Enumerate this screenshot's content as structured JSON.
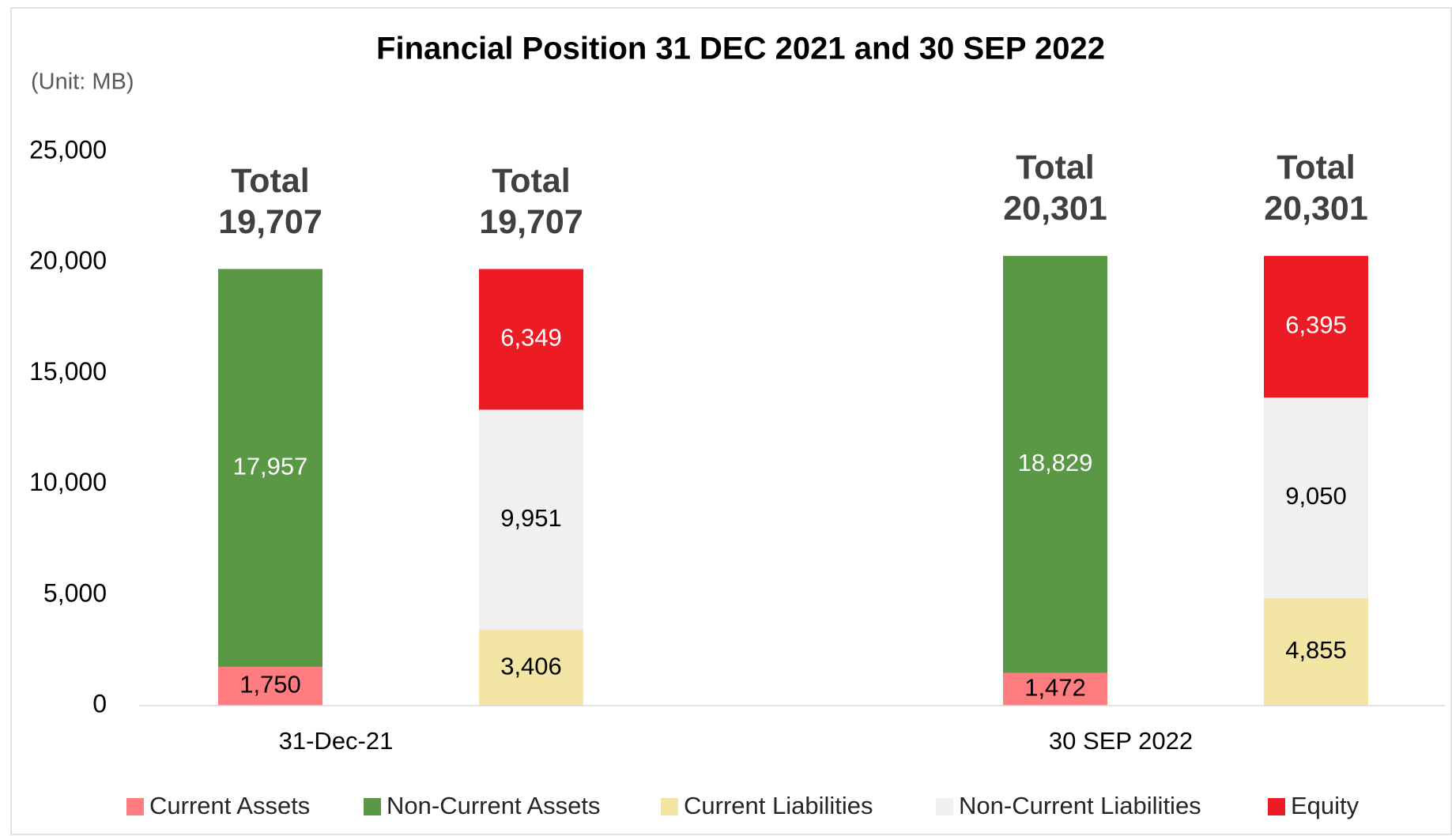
{
  "chart_data": {
    "type": "stacked_bar_pair",
    "title": "Financial Position 31 DEC 2021 and 30 SEP 2022",
    "subtitle": "(Unit: MB)",
    "categories": [
      "31-Dec-21",
      "30 SEP 2022"
    ],
    "stacks": [
      "assets",
      "liabilities"
    ],
    "series": [
      {
        "name": "Current Assets",
        "stack": "assets",
        "color": "#ff7c80",
        "label_color": "#000000",
        "values": [
          1750,
          1472
        ],
        "value_labels": [
          "1,750",
          "1,472"
        ]
      },
      {
        "name": "Non-Current Assets",
        "stack": "assets",
        "color": "#5b9846",
        "label_color": "#ffffff",
        "values": [
          17957,
          18829
        ],
        "value_labels": [
          "17,957",
          "18,829"
        ]
      },
      {
        "name": "Current Liabilities",
        "stack": "liabilities",
        "color": "#f3e6a5",
        "label_color": "#000000",
        "values": [
          3406,
          4855
        ],
        "value_labels": [
          "3,406",
          "4,855"
        ]
      },
      {
        "name": "Non-Current Liabilities",
        "stack": "liabilities",
        "color": "#f0f0f0",
        "label_color": "#000000",
        "values": [
          9951,
          9050
        ],
        "value_labels": [
          "9,951",
          "9,050"
        ]
      },
      {
        "name": "Equity",
        "stack": "liabilities",
        "color": "#ed1c24",
        "label_color": "#ffffff",
        "values": [
          6349,
          6395
        ],
        "value_labels": [
          "6,349",
          "6,395"
        ]
      }
    ],
    "total_label": "Total",
    "totals": [
      {
        "value": 19707,
        "label": "19,707"
      },
      {
        "value": 19707,
        "label": "19,707"
      },
      {
        "value": 20301,
        "label": "20,301"
      },
      {
        "value": 20301,
        "label": "20,301"
      }
    ],
    "ylim": [
      0,
      25000
    ],
    "yticks": [
      0,
      {
        "value": 5000,
        "label": "5,000"
      },
      {
        "value": 10000,
        "label": "10,000"
      },
      {
        "value": 15000,
        "label": "15,000"
      },
      {
        "value": 20000,
        "label": "20,000"
      },
      {
        "value": 25000,
        "label": "25,000"
      }
    ],
    "grid": false,
    "legend": "bottom"
  }
}
